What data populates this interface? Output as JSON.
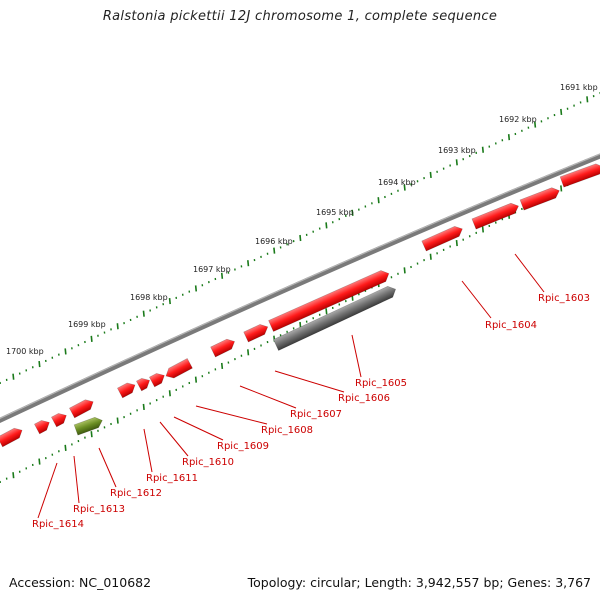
{
  "title": "Ralstonia pickettii 12J chromosome 1, complete sequence",
  "footer": {
    "accession": "Accession: NC_010682",
    "summary": "Topology: circular; Length: 3,942,557 bp; Genes: 3,767"
  },
  "ruler_labels": [
    "1691 kbp",
    "1692 kbp",
    "1693 kbp",
    "1694 kbp",
    "1695 kbp",
    "1696 kbp",
    "1697 kbp",
    "1698 kbp",
    "1699 kbp",
    "1700 kbp"
  ],
  "gene_labels": [
    "Rpic_1603",
    "Rpic_1604",
    "Rpic_1605",
    "Rpic_1606",
    "Rpic_1607",
    "Rpic_1608",
    "Rpic_1609",
    "Rpic_1610",
    "Rpic_1611",
    "Rpic_1612",
    "Rpic_1613",
    "Rpic_1614"
  ],
  "colors": {
    "gene": "#ff1a1a",
    "pseudogene": "#6b6b6b",
    "rna": "#6b8e23",
    "backbone": "#7a7a7a",
    "ruler_tick": "#1a7a1a",
    "label": "#cc0000"
  }
}
